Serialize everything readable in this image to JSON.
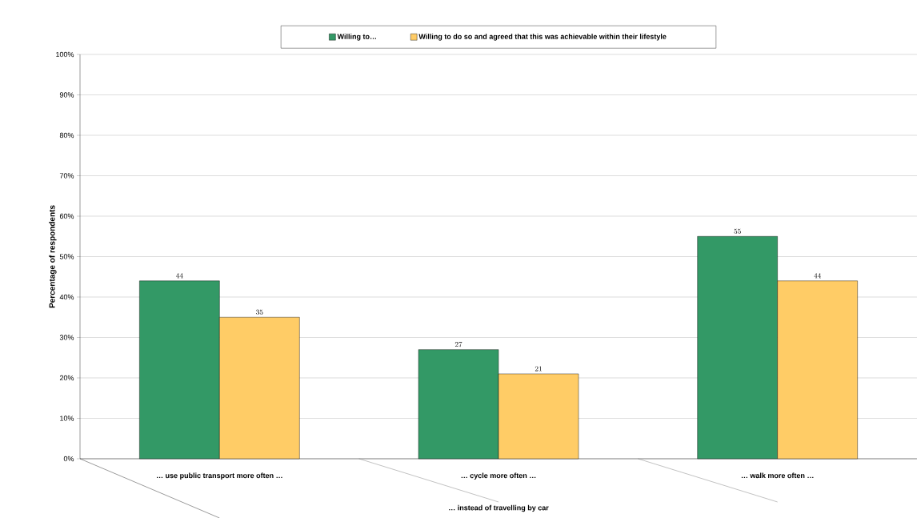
{
  "chart_data": {
    "type": "bar",
    "ylabel": "Percentage of respondents",
    "xlabel": "… instead of travelling by car",
    "categories": [
      "… use public transport more often …",
      "… cycle more often …",
      "… walk more often …"
    ],
    "series": [
      {
        "name": "Willing to…",
        "color": "#339966",
        "values": [
          44,
          27,
          55
        ]
      },
      {
        "name": "Willing to do so and agreed that this was achievable within their lifestyle",
        "color": "#ffcc66",
        "values": [
          35,
          21,
          44
        ]
      }
    ],
    "ylim": [
      0,
      100
    ],
    "yticks": [
      {
        "value": 0,
        "label": "0%"
      },
      {
        "value": 10,
        "label": "10%"
      },
      {
        "value": 20,
        "label": "20%"
      },
      {
        "value": 30,
        "label": "30%"
      },
      {
        "value": 40,
        "label": "40%"
      },
      {
        "value": 50,
        "label": "50%"
      },
      {
        "value": 60,
        "label": "60%"
      },
      {
        "value": 70,
        "label": "70%"
      },
      {
        "value": 80,
        "label": "80%"
      },
      {
        "value": 90,
        "label": "90%"
      },
      {
        "value": 100,
        "label": "100%"
      }
    ],
    "grid": "y",
    "legend": "top",
    "data_labels": true
  }
}
